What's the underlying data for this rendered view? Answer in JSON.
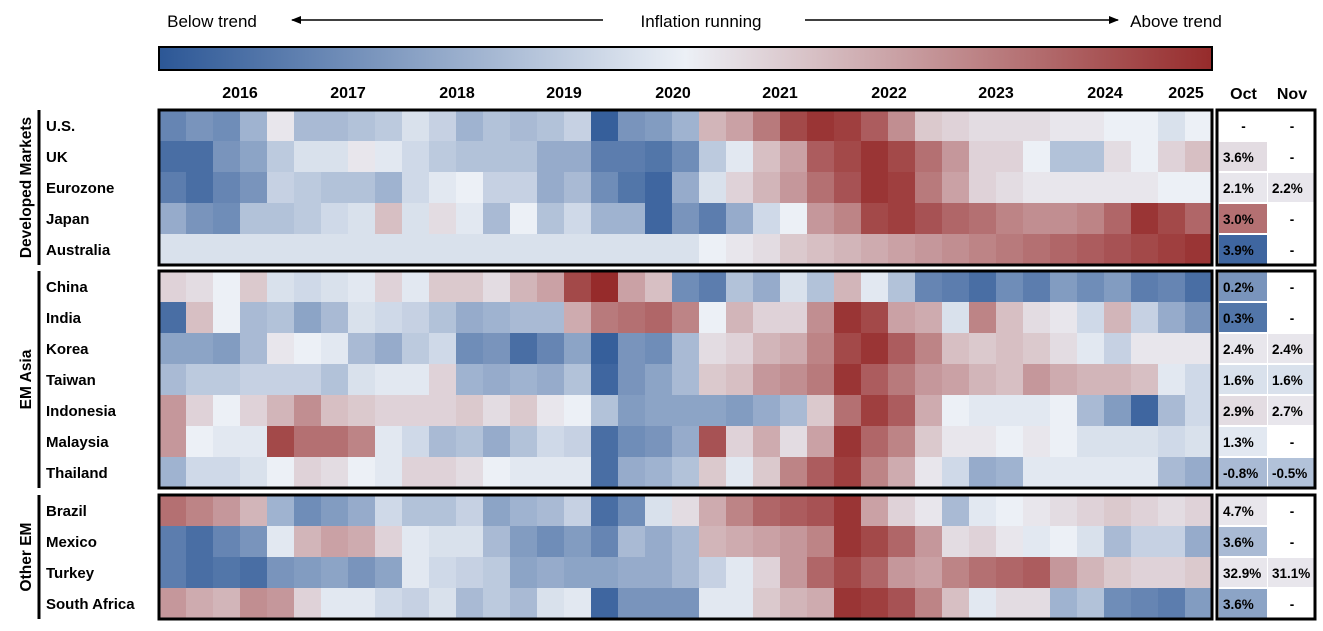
{
  "chart_data": {
    "type": "heatmap",
    "title": "Inflation running",
    "legend_left": "Below trend",
    "legend_right": "Above trend",
    "value_scale": "normalized inflation vs trend, -1 = far below trend (blue), 0 = at trend (white), +1 = far above trend (red)",
    "years": [
      "2016",
      "2017",
      "2018",
      "2019",
      "2020",
      "2021",
      "2022",
      "2023",
      "2024",
      "2025"
    ],
    "latest_columns": [
      "Oct",
      "Nov"
    ],
    "colors": {
      "low": "#2c5796",
      "mid": "#ecf0f6",
      "high": "#962b2b",
      "border": "#000000"
    },
    "groups": [
      {
        "name": "Developed Markets",
        "rows": [
          {
            "name": "U.S.",
            "oct": "-",
            "nov": "-",
            "oct_level": null,
            "nov_level": null,
            "values": [
              -0.7,
              -0.6,
              -0.65,
              -0.4,
              0.05,
              -0.35,
              -0.35,
              -0.3,
              -0.25,
              -0.1,
              -0.2,
              -0.4,
              -0.3,
              -0.35,
              -0.3,
              -0.2,
              -0.95,
              -0.6,
              -0.55,
              -0.4,
              0.3,
              0.4,
              0.6,
              0.85,
              0.95,
              0.9,
              0.75,
              0.5,
              0.2,
              0.15,
              0.1,
              0.1,
              0.1,
              0.05,
              0.05,
              0.0,
              0.0,
              -0.1,
              0.0
            ]
          },
          {
            "name": "UK",
            "oct": "3.6%",
            "nov": "-",
            "oct_level": 0.1,
            "nov_level": null,
            "values": [
              -0.85,
              -0.85,
              -0.6,
              -0.5,
              -0.25,
              -0.1,
              -0.1,
              0.05,
              -0.05,
              -0.15,
              -0.25,
              -0.3,
              -0.3,
              -0.3,
              -0.45,
              -0.45,
              -0.75,
              -0.75,
              -0.8,
              -0.65,
              -0.25,
              -0.05,
              0.25,
              0.4,
              0.75,
              0.85,
              0.95,
              0.85,
              0.65,
              0.45,
              0.15,
              0.15,
              0.0,
              -0.3,
              -0.3,
              0.1,
              0.0,
              0.15,
              0.25
            ]
          },
          {
            "name": "Eurozone",
            "oct": "2.1%",
            "nov": "2.2%",
            "oct_level": 0.05,
            "nov_level": 0.05,
            "values": [
              -0.75,
              -0.85,
              -0.7,
              -0.6,
              -0.2,
              -0.25,
              -0.3,
              -0.3,
              -0.4,
              -0.15,
              -0.05,
              0.0,
              -0.2,
              -0.2,
              -0.45,
              -0.35,
              -0.65,
              -0.8,
              -0.9,
              -0.45,
              -0.1,
              0.15,
              0.3,
              0.45,
              0.65,
              0.8,
              0.95,
              0.9,
              0.6,
              0.4,
              0.15,
              0.1,
              0.05,
              0.05,
              0.05,
              0.05,
              0.05,
              0.0,
              0.0
            ]
          },
          {
            "name": "Japan",
            "oct": "3.0%",
            "nov": "-",
            "oct_level": 0.65,
            "nov_level": null,
            "values": [
              -0.45,
              -0.6,
              -0.65,
              -0.3,
              -0.3,
              -0.25,
              -0.15,
              -0.1,
              0.25,
              -0.1,
              0.1,
              -0.05,
              -0.35,
              0.0,
              -0.3,
              -0.15,
              -0.4,
              -0.4,
              -0.9,
              -0.6,
              -0.75,
              -0.45,
              -0.15,
              0.0,
              0.45,
              0.55,
              0.85,
              0.9,
              0.8,
              0.7,
              0.65,
              0.55,
              0.5,
              0.5,
              0.55,
              0.7,
              0.95,
              0.85,
              0.7
            ]
          },
          {
            "name": "Australia",
            "oct": "3.9%",
            "nov": "-",
            "oct_level": -0.9,
            "nov_level": null,
            "values": [
              -0.1,
              -0.1,
              -0.1,
              -0.1,
              -0.1,
              -0.1,
              -0.1,
              -0.1,
              -0.1,
              -0.1,
              -0.1,
              -0.1,
              -0.1,
              -0.1,
              -0.1,
              -0.1,
              -0.1,
              -0.1,
              -0.1,
              -0.1,
              0.0,
              0.05,
              0.1,
              0.2,
              0.25,
              0.3,
              0.35,
              0.4,
              0.45,
              0.5,
              0.55,
              0.6,
              0.65,
              0.7,
              0.75,
              0.8,
              0.85,
              0.9,
              0.95
            ]
          }
        ]
      },
      {
        "name": "EM Asia",
        "rows": [
          {
            "name": "China",
            "oct": "0.2%",
            "nov": "-",
            "oct_level": -0.6,
            "nov_level": null,
            "values": [
              0.15,
              0.1,
              0.0,
              0.2,
              -0.1,
              -0.15,
              -0.1,
              -0.05,
              0.15,
              -0.05,
              0.2,
              0.2,
              0.1,
              0.3,
              0.4,
              0.85,
              1.0,
              0.4,
              0.25,
              -0.65,
              -0.75,
              -0.3,
              -0.45,
              -0.1,
              -0.3,
              0.3,
              -0.05,
              -0.3,
              -0.7,
              -0.75,
              -0.85,
              -0.65,
              -0.75,
              -0.55,
              -0.65,
              -0.55,
              -0.75,
              -0.7,
              -0.85
            ]
          },
          {
            "name": "India",
            "oct": "0.3%",
            "nov": "-",
            "oct_level": -0.8,
            "nov_level": null,
            "values": [
              -0.85,
              0.25,
              0.0,
              -0.35,
              -0.3,
              -0.5,
              -0.35,
              -0.1,
              -0.15,
              -0.2,
              -0.3,
              -0.45,
              -0.4,
              -0.35,
              -0.35,
              0.35,
              0.6,
              0.65,
              0.7,
              0.55,
              0.0,
              0.3,
              0.15,
              0.15,
              0.5,
              0.95,
              0.85,
              0.4,
              0.35,
              -0.1,
              0.55,
              0.25,
              0.1,
              0.05,
              -0.15,
              0.3,
              -0.2,
              -0.45,
              -0.6
            ]
          },
          {
            "name": "Korea",
            "oct": "2.4%",
            "nov": "2.4%",
            "oct_level": 0.05,
            "nov_level": 0.05,
            "values": [
              -0.5,
              -0.5,
              -0.55,
              -0.35,
              0.05,
              0.0,
              -0.05,
              -0.35,
              -0.45,
              -0.25,
              -0.15,
              -0.65,
              -0.6,
              -0.85,
              -0.7,
              -0.5,
              -0.95,
              -0.6,
              -0.65,
              -0.35,
              0.1,
              0.15,
              0.3,
              0.35,
              0.55,
              0.85,
              0.95,
              0.75,
              0.55,
              0.25,
              0.2,
              0.25,
              0.2,
              0.1,
              -0.05,
              -0.2,
              0.05,
              0.05,
              0.05
            ]
          },
          {
            "name": "Taiwan",
            "oct": "1.6%",
            "nov": "1.6%",
            "oct_level": -0.1,
            "nov_level": -0.1,
            "values": [
              -0.35,
              -0.25,
              -0.25,
              -0.2,
              -0.2,
              -0.2,
              -0.3,
              -0.1,
              -0.05,
              -0.05,
              0.15,
              -0.4,
              -0.45,
              -0.4,
              -0.45,
              -0.3,
              -0.9,
              -0.6,
              -0.5,
              -0.35,
              0.2,
              0.25,
              0.45,
              0.5,
              0.6,
              0.95,
              0.75,
              0.6,
              0.45,
              0.4,
              0.3,
              0.25,
              0.45,
              0.35,
              0.3,
              0.3,
              0.25,
              -0.05,
              -0.15
            ]
          },
          {
            "name": "Indonesia",
            "oct": "2.9%",
            "nov": "2.7%",
            "oct_level": 0.1,
            "nov_level": 0.05,
            "values": [
              0.45,
              0.15,
              0.0,
              0.15,
              0.3,
              0.5,
              0.25,
              0.2,
              0.15,
              0.15,
              0.15,
              0.2,
              0.1,
              0.2,
              0.05,
              0.0,
              -0.3,
              -0.55,
              -0.5,
              -0.5,
              -0.5,
              -0.55,
              -0.45,
              -0.35,
              0.2,
              0.65,
              0.9,
              0.75,
              0.35,
              0.0,
              -0.05,
              -0.05,
              -0.05,
              0.0,
              -0.35,
              -0.55,
              -0.9,
              -0.35,
              -0.15
            ]
          },
          {
            "name": "Malaysia",
            "oct": "1.3%",
            "nov": "-",
            "oct_level": -0.05,
            "nov_level": null,
            "values": [
              0.45,
              0.0,
              -0.05,
              -0.05,
              0.85,
              0.65,
              0.65,
              0.55,
              -0.05,
              -0.15,
              -0.35,
              -0.3,
              -0.45,
              -0.3,
              -0.15,
              -0.2,
              -0.85,
              -0.65,
              -0.6,
              -0.45,
              0.8,
              0.15,
              0.35,
              0.1,
              0.4,
              0.95,
              0.7,
              0.55,
              0.2,
              0.05,
              0.05,
              0.0,
              0.05,
              0.0,
              -0.1,
              -0.1,
              -0.1,
              -0.15,
              -0.1
            ]
          },
          {
            "name": "Thailand",
            "oct": "-0.8%",
            "nov": "-0.5%",
            "oct_level": -0.35,
            "nov_level": -0.3,
            "values": [
              -0.4,
              -0.15,
              -0.15,
              -0.1,
              0.0,
              0.15,
              0.1,
              0.0,
              -0.05,
              0.15,
              0.15,
              0.1,
              0.0,
              -0.05,
              -0.05,
              -0.05,
              -0.85,
              -0.45,
              -0.4,
              -0.3,
              0.2,
              -0.05,
              0.2,
              0.55,
              0.75,
              0.9,
              0.55,
              0.35,
              0.05,
              -0.15,
              -0.45,
              -0.4,
              -0.05,
              -0.05,
              -0.05,
              -0.05,
              -0.05,
              -0.35,
              -0.45
            ]
          }
        ]
      },
      {
        "name": "Other EM",
        "rows": [
          {
            "name": "Brazil",
            "oct": "4.7%",
            "nov": "-",
            "oct_level": 0.05,
            "nov_level": null,
            "values": [
              0.65,
              0.55,
              0.45,
              0.3,
              -0.4,
              -0.65,
              -0.55,
              -0.45,
              -0.15,
              -0.3,
              -0.3,
              -0.2,
              -0.5,
              -0.4,
              -0.35,
              -0.2,
              -0.85,
              -0.65,
              -0.1,
              0.1,
              0.35,
              0.55,
              0.7,
              0.75,
              0.8,
              0.95,
              0.4,
              0.15,
              0.05,
              -0.35,
              -0.05,
              0.0,
              0.05,
              0.1,
              0.15,
              0.2,
              0.15,
              0.1,
              0.15
            ]
          },
          {
            "name": "Mexico",
            "oct": "3.6%",
            "nov": "-",
            "oct_level": -0.35,
            "nov_level": null,
            "values": [
              -0.75,
              -0.85,
              -0.7,
              -0.6,
              -0.05,
              0.3,
              0.4,
              0.35,
              0.15,
              -0.05,
              -0.1,
              -0.1,
              -0.35,
              -0.55,
              -0.65,
              -0.55,
              -0.7,
              -0.35,
              -0.45,
              -0.35,
              0.3,
              0.35,
              0.4,
              0.45,
              0.55,
              0.95,
              0.85,
              0.7,
              0.45,
              0.1,
              0.15,
              0.05,
              -0.05,
              0.0,
              -0.1,
              -0.35,
              -0.2,
              -0.2,
              -0.45
            ]
          },
          {
            "name": "Turkey",
            "oct": "32.9%",
            "nov": "31.1%",
            "oct_level": 0.05,
            "nov_level": 0.05,
            "values": [
              -0.75,
              -0.85,
              -0.8,
              -0.85,
              -0.6,
              -0.55,
              -0.5,
              -0.6,
              -0.5,
              -0.05,
              -0.15,
              -0.2,
              -0.25,
              -0.5,
              -0.45,
              -0.5,
              -0.5,
              -0.45,
              -0.45,
              -0.35,
              -0.2,
              -0.05,
              0.15,
              0.45,
              0.7,
              0.85,
              0.7,
              0.45,
              0.4,
              0.55,
              0.65,
              0.7,
              0.75,
              0.45,
              0.3,
              0.2,
              0.15,
              0.15,
              0.2
            ]
          },
          {
            "name": "South Africa",
            "oct": "3.6%",
            "nov": "-",
            "oct_level": -0.5,
            "nov_level": null,
            "values": [
              0.45,
              0.35,
              0.3,
              0.5,
              0.45,
              0.15,
              -0.05,
              -0.05,
              -0.15,
              -0.2,
              -0.1,
              -0.35,
              -0.25,
              -0.35,
              -0.1,
              -0.05,
              -0.9,
              -0.6,
              -0.6,
              -0.6,
              -0.05,
              -0.05,
              0.2,
              0.3,
              0.35,
              0.95,
              0.9,
              0.8,
              0.55,
              0.25,
              -0.05,
              0.1,
              0.1,
              -0.4,
              -0.3,
              -0.65,
              -0.7,
              -0.75,
              -0.55
            ]
          }
        ]
      }
    ]
  }
}
